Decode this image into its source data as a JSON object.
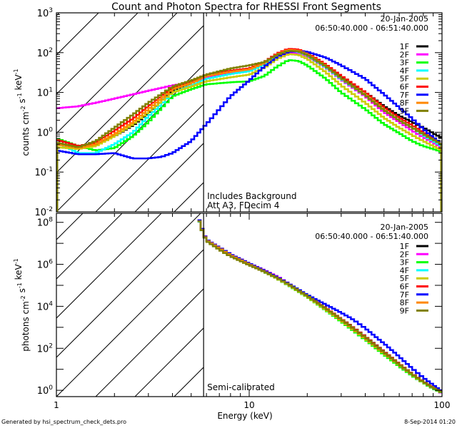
{
  "chart_data": [
    {
      "type": "line",
      "title": "Count and Photon Spectra for RHESSI Front Segments",
      "xlabel": "",
      "ylabel": "counts cm^-2 s^-1 keV^-1",
      "xscale": "log",
      "yscale": "log",
      "xlim": [
        1,
        100
      ],
      "ylim": [
        0.01,
        1000
      ],
      "xticks": [
        "1",
        "10",
        "100"
      ],
      "yticks": [
        "10^-2",
        "10^-1",
        "10^0",
        "10^1",
        "10^2",
        "10^3"
      ],
      "date": "20-Jan-2005",
      "time_range": "06:50:40.000 - 06:51:40.000",
      "annotations": [
        "Includes Background",
        "Att A3, FDecim 4"
      ],
      "threshold_energy_keV": 5.8,
      "hatched_region_keV": [
        1,
        5.8
      ],
      "legend_position": "top-right",
      "x": [
        1.0,
        1.3,
        1.6,
        2.0,
        2.5,
        3.0,
        3.5,
        4.0,
        5.0,
        6.0,
        8.0,
        10,
        12,
        14,
        16,
        18,
        20,
        25,
        30,
        40,
        50,
        60,
        70,
        80,
        90,
        100
      ],
      "series": [
        {
          "name": "1F",
          "color": "#000000",
          "values": [
            0.5,
            0.4,
            0.5,
            0.8,
            1.5,
            3,
            6,
            11,
            17,
            25,
            32,
            38,
            55,
            90,
            120,
            115,
            95,
            48,
            25,
            10,
            4.5,
            2.6,
            1.8,
            1.3,
            0.95,
            0.7
          ]
        },
        {
          "name": "2F",
          "color": "#ff00ff",
          "values": [
            4,
            4.5,
            5.5,
            7,
            9,
            11,
            13,
            15,
            18,
            24,
            30,
            36,
            52,
            80,
            100,
            98,
            80,
            42,
            21,
            8,
            3.2,
            1.8,
            1.1,
            0.75,
            0.55,
            0.4
          ]
        },
        {
          "name": "3F",
          "color": "#00ff00",
          "values": [
            0.7,
            0.45,
            0.35,
            0.4,
            0.8,
            1.8,
            4,
            8,
            12,
            16,
            18,
            19,
            26,
            45,
            65,
            62,
            48,
            22,
            10,
            3.8,
            1.6,
            0.95,
            0.6,
            0.45,
            0.38,
            0.32
          ]
        },
        {
          "name": "4F",
          "color": "#00ffff",
          "values": [
            0.55,
            0.3,
            0.3,
            0.5,
            1.0,
            2.5,
            5,
            10,
            15,
            22,
            29,
            34,
            50,
            82,
            108,
            105,
            86,
            43,
            22,
            8.5,
            3.6,
            2.0,
            1.3,
            0.85,
            0.6,
            0.45
          ]
        },
        {
          "name": "5F",
          "color": "#cccc00",
          "values": [
            0.42,
            0.38,
            0.45,
            0.8,
            1.6,
            3.2,
            6,
            10,
            14,
            19,
            24,
            28,
            42,
            70,
            92,
            88,
            70,
            32,
            15,
            5.5,
            2.3,
            1.3,
            0.85,
            0.6,
            0.45,
            0.35
          ]
        },
        {
          "name": "6F",
          "color": "#ff0000",
          "values": [
            0.65,
            0.45,
            0.55,
            1.1,
            2.2,
            4.5,
            8,
            13,
            19,
            28,
            35,
            40,
            58,
            95,
            125,
            120,
            98,
            50,
            26,
            10,
            4.2,
            2.3,
            1.5,
            1.0,
            0.7,
            0.5
          ]
        },
        {
          "name": "7F",
          "color": "#0000ff",
          "values": [
            0.35,
            0.28,
            0.28,
            0.3,
            0.22,
            0.22,
            0.24,
            0.3,
            0.6,
            1.6,
            8,
            20,
            45,
            80,
            105,
            110,
            105,
            75,
            48,
            22,
            9,
            4.2,
            2.2,
            1.2,
            0.75,
            0.5
          ]
        },
        {
          "name": "8F",
          "color": "#ff8800",
          "values": [
            0.5,
            0.4,
            0.5,
            0.9,
            1.8,
            3.8,
            7,
            12,
            17,
            26,
            33,
            38,
            55,
            90,
            118,
            112,
            92,
            46,
            23,
            8.8,
            3.7,
            2.0,
            1.3,
            0.9,
            0.65,
            0.5
          ]
        },
        {
          "name": "9F",
          "color": "#808000",
          "values": [
            0.55,
            0.42,
            0.6,
            1.3,
            2.8,
            5.5,
            9,
            14,
            20,
            28,
            40,
            48,
            58,
            88,
            112,
            108,
            88,
            45,
            23,
            8.5,
            3.6,
            2.0,
            1.3,
            0.9,
            0.65,
            0.5
          ]
        }
      ]
    },
    {
      "type": "line",
      "title": "",
      "xlabel": "Energy (keV)",
      "ylabel": "photons cm^-2 s^-1 keV^-1",
      "xscale": "log",
      "yscale": "log",
      "xlim": [
        1,
        100
      ],
      "ylim": [
        0.5,
        270000000.0
      ],
      "xticks": [
        "1",
        "10",
        "100"
      ],
      "yticks": [
        "10^0",
        "10^2",
        "10^4",
        "10^6",
        "10^8"
      ],
      "date": "20-Jan-2005",
      "time_range": "06:50:40.000 - 06:51:40.000",
      "annotations": [
        "Semi-calibrated"
      ],
      "threshold_energy_keV": 5.8,
      "hatched_region_keV": [
        1,
        5.8
      ],
      "legend_position": "top-right",
      "x": [
        5.4,
        5.8,
        6.0,
        7.0,
        8.0,
        10,
        12,
        14,
        16,
        20,
        25,
        30,
        35,
        40,
        50,
        60,
        70,
        80,
        90,
        100
      ],
      "series": [
        {
          "name": "1F",
          "color": "#000000",
          "values": [
            200000000.0,
            30000000.0,
            15000000.0,
            6000000.0,
            2800000.0,
            1000000.0,
            450000.0,
            220000.0,
            110000.0,
            32000.0,
            8000.0,
            2500.0,
            900.0,
            360.0,
            70,
            18,
            6,
            2.6,
            1.4,
            0.8
          ]
        },
        {
          "name": "2F",
          "color": "#ff00ff",
          "values": [
            200000000.0,
            30000000.0,
            15000000.0,
            6200000.0,
            3000000.0,
            1100000.0,
            520000.0,
            260000.0,
            120000.0,
            32000.0,
            8000.0,
            2400.0,
            850.0,
            340.0,
            65,
            17,
            5.8,
            2.5,
            1.3,
            0.7
          ]
        },
        {
          "name": "3F",
          "color": "#00ff00",
          "values": [
            200000000.0,
            30000000.0,
            14000000.0,
            5600000.0,
            2600000.0,
            950000.0,
            430000.0,
            210000.0,
            100000.0,
            28000.0,
            6500.0,
            1900.0,
            650.0,
            260.0,
            50,
            14,
            5,
            2.3,
            1.2,
            0.75
          ]
        },
        {
          "name": "4F",
          "color": "#00ffff",
          "values": [
            170000000.0,
            26000000.0,
            14000000.0,
            5900000.0,
            2800000.0,
            1000000.0,
            460000.0,
            220000.0,
            110000.0,
            31000.0,
            7500.0,
            2300.0,
            800.0,
            320.0,
            62,
            17,
            5.8,
            2.5,
            1.3,
            0.8
          ]
        },
        {
          "name": "5F",
          "color": "#cccc00",
          "values": [
            190000000.0,
            28000000.0,
            14000000.0,
            5800000.0,
            2700000.0,
            980000.0,
            440000.0,
            210000.0,
            105000.0,
            29000.0,
            7000.0,
            2100.0,
            730.0,
            290.0,
            57,
            16,
            5.5,
            2.4,
            1.3,
            0.8
          ]
        },
        {
          "name": "6F",
          "color": "#ff0000",
          "values": [
            200000000.0,
            30000000.0,
            15000000.0,
            6300000.0,
            3000000.0,
            1100000.0,
            490000.0,
            240000.0,
            115000.0,
            33000.0,
            8200.0,
            2500.0,
            880.0,
            350.0,
            68,
            18,
            6,
            2.6,
            1.4,
            0.8
          ]
        },
        {
          "name": "7F",
          "color": "#0000ff",
          "values": [
            200000000.0,
            30000000.0,
            15000000.0,
            6300000.0,
            3000000.0,
            1100000.0,
            500000.0,
            240000.0,
            120000.0,
            35000.0,
            12000.0,
            5000.0,
            2200.0,
            900.0,
            170.0,
            40,
            11,
            4,
            1.8,
            0.9
          ]
        },
        {
          "name": "8F",
          "color": "#ff8800",
          "values": [
            180000000.0,
            27000000.0,
            14000000.0,
            5800000.0,
            2700000.0,
            1000000.0,
            450000.0,
            220000.0,
            110000.0,
            31000.0,
            7600.0,
            2300.0,
            800.0,
            320.0,
            62,
            17,
            5.8,
            2.5,
            1.3,
            0.8
          ]
        },
        {
          "name": "9F",
          "color": "#808000",
          "values": [
            180000000.0,
            26000000.0,
            13000000.0,
            5000000.0,
            2400000.0,
            920000.0,
            440000.0,
            220000.0,
            110000.0,
            31000.0,
            7800.0,
            2400.0,
            830.0,
            330.0,
            64,
            17,
            5.8,
            2.5,
            1.3,
            0.8
          ]
        }
      ]
    }
  ],
  "footer": {
    "generated_by": "Generated by hsi_spectrum_check_dets.pro",
    "timestamp": "8-Sep-2014 01:20"
  }
}
